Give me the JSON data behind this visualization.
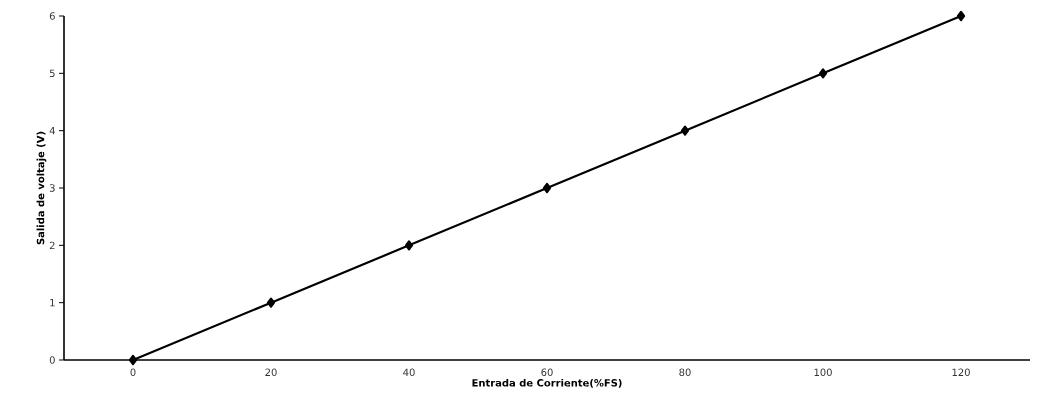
{
  "chart_data": {
    "type": "line",
    "xlabel": "Entrada de Corriente(%FS)",
    "ylabel": "Salida de voltaje (V)",
    "x": [
      0,
      20,
      40,
      60,
      80,
      100,
      120
    ],
    "series": [
      {
        "color": "#000000",
        "values": [
          0,
          1,
          2,
          3,
          4,
          5,
          6
        ]
      }
    ],
    "xlim": [
      -10,
      130
    ],
    "xticks": [
      0,
      20,
      40,
      60,
      80,
      100,
      120
    ],
    "ylim": [
      0,
      6
    ],
    "yticks": [
      0,
      1,
      2,
      3,
      4,
      5,
      6
    ],
    "marker": "diamond",
    "line_style": "solid"
  }
}
